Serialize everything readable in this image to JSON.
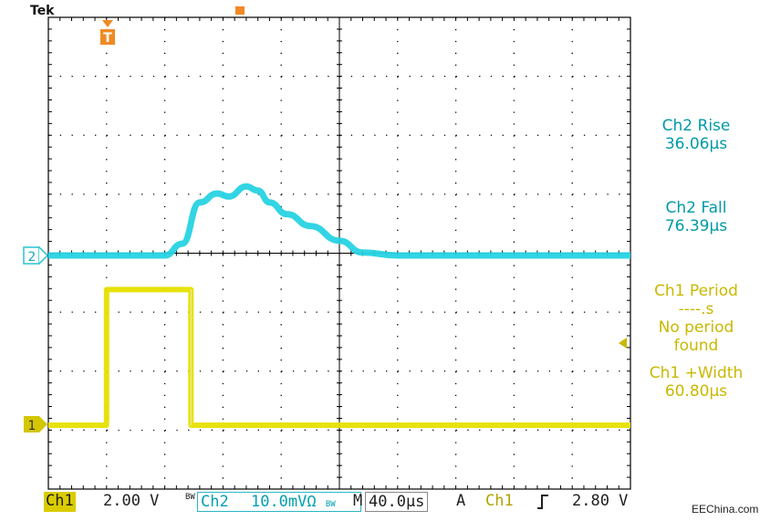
{
  "header_text": "Tek",
  "trigger_marker": "T",
  "channel_markers": {
    "ch1": "1",
    "ch2": "2"
  },
  "measurements": {
    "ch2_rise": {
      "label": "Ch2 Rise",
      "value": "36.06µs"
    },
    "ch2_fall": {
      "label": "Ch2 Fall",
      "value": "76.39µs"
    },
    "ch1_period": {
      "label": "Ch1 Period",
      "value": "----.s",
      "note_line1": "No period",
      "note_line2": "found"
    },
    "ch1_width": {
      "label": "Ch1 +Width",
      "value": "60.80µs"
    }
  },
  "status_bar": {
    "ch1_label": "Ch1",
    "ch1_scale": "2.00 V",
    "bw1": "BW",
    "ch2_label": "Ch2",
    "ch2_scale": "10.0mVΩ",
    "bw2": "BW",
    "time_prefix": "M",
    "time_scale": "40.0µs",
    "acq_mode": "A",
    "trig_source": "Ch1",
    "trig_slope_icon": "rising-edge-icon",
    "trig_level": "2.80 V"
  },
  "watermark": "EEChina.com",
  "colors": {
    "ch1": "#e6e000",
    "ch2": "#27d3e3",
    "grid": "#000000",
    "trigger": "#f08a24"
  },
  "chart_data": {
    "type": "line",
    "x_unit": "div",
    "x_divisions": 10,
    "y_divisions": 8,
    "series": [
      {
        "name": "Ch2",
        "x": [
          0,
          2.0,
          2.3,
          2.6,
          2.9,
          3.1,
          3.4,
          3.6,
          3.8,
          4.1,
          4.5,
          5.0,
          5.4,
          6.0,
          10.0
        ],
        "y": [
          0,
          0,
          0.2,
          0.9,
          1.05,
          1.0,
          1.17,
          1.1,
          0.9,
          0.7,
          0.5,
          0.25,
          0.05,
          0,
          0
        ]
      },
      {
        "name": "Ch1",
        "x": [
          0,
          1.0,
          1.0,
          2.45,
          2.45,
          10.0
        ],
        "y": [
          0,
          0,
          2.3,
          2.3,
          0,
          0
        ]
      }
    ]
  }
}
